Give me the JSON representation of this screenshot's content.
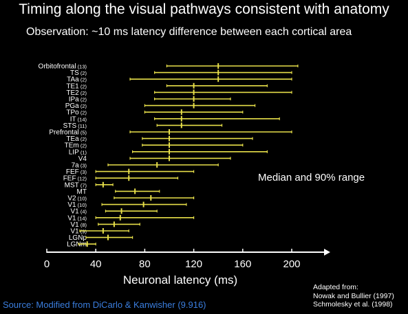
{
  "title": "Timing along the visual pathways consistent with anatomy",
  "subtitle": "Observation: ~10 ms latency difference between each cortical area",
  "legend_note": "Median and 90% range",
  "credit": [
    "Adapted from:",
    "Nowak and Bullier (1997)",
    "Schmolesky et al. (1998)"
  ],
  "source": "Source: Modified from DiCarlo & Kanwisher (9.916)",
  "colors": {
    "background": "#000000",
    "bars": "#e8e04a",
    "median": "#ffffff",
    "text": "#ffffff",
    "source": "#3b7fe0"
  },
  "chart_data": {
    "type": "range",
    "xlabel": "Neuronal latency (ms)",
    "xlim": [
      0,
      225
    ],
    "xticks": [
      0,
      40,
      80,
      120,
      160,
      200
    ],
    "rows": [
      {
        "label": "Orbitofrontal",
        "n": "(13)",
        "low": 98,
        "median": 140,
        "high": 205
      },
      {
        "label": "TS",
        "n": "(2)",
        "low": 88,
        "median": 140,
        "high": 200
      },
      {
        "label": "TAa",
        "n": "(2)",
        "low": 68,
        "median": 140,
        "high": 200
      },
      {
        "label": "TE1",
        "n": "(2)",
        "low": 98,
        "median": 120,
        "high": 180
      },
      {
        "label": "TE2",
        "n": "(2)",
        "low": 88,
        "median": 120,
        "high": 200
      },
      {
        "label": "IPa",
        "n": "(2)",
        "low": 88,
        "median": 120,
        "high": 150
      },
      {
        "label": "PGa",
        "n": "(2)",
        "low": 80,
        "median": 120,
        "high": 170
      },
      {
        "label": "TPo",
        "n": "(2)",
        "low": 80,
        "median": 110,
        "high": 160
      },
      {
        "label": "IT",
        "n": "(14)",
        "low": 88,
        "median": 110,
        "high": 190
      },
      {
        "label": "STS",
        "n": "(11)",
        "low": 90,
        "median": 110,
        "high": 143
      },
      {
        "label": "Prefrontal",
        "n": "(5)",
        "low": 68,
        "median": 100,
        "high": 200
      },
      {
        "label": "TEa",
        "n": "(2)",
        "low": 78,
        "median": 100,
        "high": 168
      },
      {
        "label": "TEm",
        "n": "(2)",
        "low": 78,
        "median": 100,
        "high": 160
      },
      {
        "label": "LIP",
        "n": "(1)",
        "low": 70,
        "median": 100,
        "high": 180
      },
      {
        "label": "V4",
        "n": "",
        "low": 68,
        "median": 100,
        "high": 150
      },
      {
        "label": "7a",
        "n": "(3)",
        "low": 50,
        "median": 90,
        "high": 140
      },
      {
        "label": "FEF",
        "n": "(3)",
        "low": 40,
        "median": 67,
        "high": 120
      },
      {
        "label": "FEF",
        "n": "(12)",
        "low": 40,
        "median": 67,
        "high": 107
      },
      {
        "label": "MST",
        "n": "(7)",
        "low": 40,
        "median": 46,
        "high": 54
      },
      {
        "label": "MT",
        "n": "",
        "low": 56,
        "median": 72,
        "high": 92
      },
      {
        "label": "V2",
        "n": "(10)",
        "low": 55,
        "median": 85,
        "high": 120
      },
      {
        "label": "V1",
        "n": "(10)",
        "low": 45,
        "median": 79,
        "high": 114
      },
      {
        "label": "V1",
        "n": "(4)",
        "low": 48,
        "median": 61,
        "high": 90
      },
      {
        "label": "V1",
        "n": "(14)",
        "low": 40,
        "median": 60,
        "high": 120
      },
      {
        "label": "V1",
        "n": "(8)",
        "low": 42,
        "median": 55,
        "high": 76
      },
      {
        "label": "V1",
        "n": "(9)",
        "low": 27,
        "median": 46,
        "high": 67
      },
      {
        "label": "LGNp",
        "n": "",
        "low": 32,
        "median": 50,
        "high": 70
      },
      {
        "label": "LGNm",
        "n": "",
        "low": 26,
        "median": 33,
        "high": 40
      }
    ]
  }
}
